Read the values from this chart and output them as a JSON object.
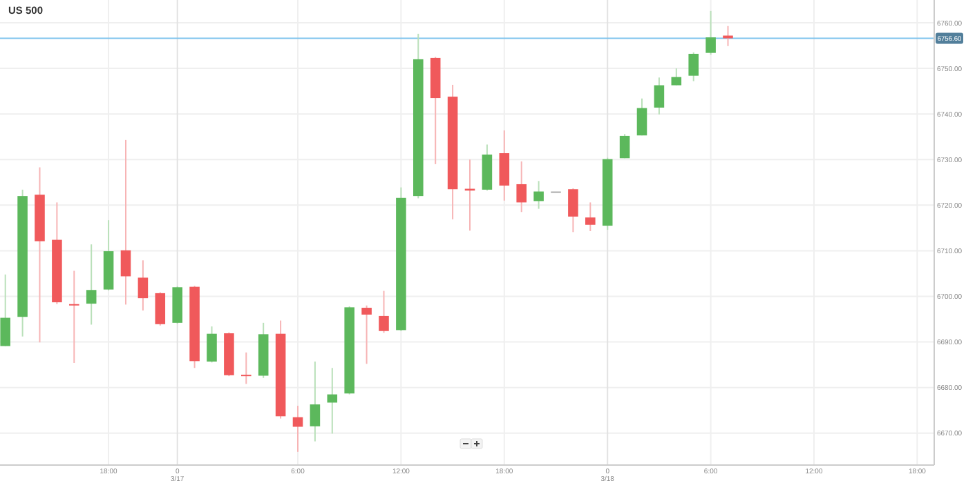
{
  "chart_data": {
    "type": "candlestick",
    "title": "US 500",
    "categories": [
      null,
      null,
      null,
      null,
      null,
      null,
      "18:00",
      null,
      null,
      null,
      "0\n3/17",
      null,
      null,
      null,
      null,
      null,
      null,
      "6:00",
      null,
      null,
      null,
      null,
      null,
      "12:00",
      null,
      null,
      null,
      null,
      null,
      "18:00",
      null,
      null,
      null,
      null,
      null,
      "0\n3/18",
      null,
      null,
      null,
      null,
      null,
      "6:00",
      null,
      null,
      null,
      null,
      null,
      "12:00",
      null,
      null,
      null,
      null,
      null,
      "18:00",
      null
    ],
    "ohlc": [
      [
        6689.1,
        6704.8,
        6689.1,
        6695.3
      ],
      [
        6695.5,
        6723.4,
        6691.2,
        6722.0
      ],
      [
        6722.3,
        6728.3,
        6689.9,
        6712.1
      ],
      [
        6712.4,
        6720.6,
        6698.3,
        6698.7
      ],
      [
        6698.3,
        6705.6,
        6685.4,
        6698.1
      ],
      [
        6698.4,
        6711.4,
        6693.8,
        6701.4
      ],
      [
        6701.5,
        6716.7,
        6701.3,
        6709.9
      ],
      [
        6710.1,
        6734.3,
        6698.2,
        6704.4
      ],
      [
        6704.1,
        6707.9,
        6696.9,
        6699.6
      ],
      [
        6700.7,
        6700.9,
        6693.6,
        6693.9
      ],
      [
        6694.2,
        6702.2,
        6694.0,
        6702.0
      ],
      [
        6702.1,
        6702.3,
        6684.3,
        6685.8
      ],
      [
        6685.7,
        6693.4,
        6685.5,
        6691.8
      ],
      [
        6691.9,
        6692.1,
        6682.5,
        6682.7
      ],
      [
        6682.8,
        6687.7,
        6680.8,
        6682.7
      ],
      [
        6682.6,
        6694.2,
        6682.1,
        6691.7
      ],
      [
        6691.8,
        6694.7,
        6673.2,
        6673.7
      ],
      [
        6673.5,
        6676.0,
        6665.9,
        6671.4
      ],
      [
        6671.5,
        6685.7,
        6668.2,
        6676.3
      ],
      [
        6676.7,
        6684.3,
        6669.9,
        6678.5
      ],
      [
        6678.7,
        6697.8,
        6678.5,
        6697.6
      ],
      [
        6697.5,
        6698.0,
        6685.2,
        6696.0
      ],
      [
        6695.7,
        6701.2,
        6692.0,
        6692.4
      ],
      [
        6692.6,
        6723.9,
        6692.4,
        6721.6
      ],
      [
        6722.0,
        6757.6,
        6721.5,
        6752.0
      ],
      [
        6752.3,
        6752.5,
        6729.0,
        6743.5
      ],
      [
        6743.8,
        6746.4,
        6716.9,
        6723.5
      ],
      [
        6723.6,
        6730.0,
        6714.4,
        6723.2
      ],
      [
        6723.4,
        6733.3,
        6723.2,
        6731.1
      ],
      [
        6731.4,
        6736.4,
        6721.0,
        6724.3
      ],
      [
        6724.6,
        6729.6,
        6718.5,
        6720.6
      ],
      [
        6720.9,
        6725.3,
        6719.2,
        6723.0
      ],
      [
        6723.0,
        6723.0,
        6723.0,
        6723.0
      ],
      [
        6723.5,
        6723.7,
        6714.1,
        6717.5
      ],
      [
        6717.3,
        6720.6,
        6714.3,
        6715.7
      ],
      [
        6715.5,
        6730.4,
        6714.6,
        6730.1
      ],
      [
        6730.3,
        6735.6,
        6730.3,
        6735.2
      ],
      [
        6735.3,
        6743.4,
        6735.3,
        6741.3
      ],
      [
        6741.4,
        6748.0,
        6739.9,
        6746.3
      ],
      [
        6746.3,
        6750.0,
        6746.3,
        6748.1
      ],
      [
        6748.4,
        6753.5,
        6747.2,
        6753.2
      ],
      [
        6753.4,
        6762.6,
        6753.0,
        6756.8
      ],
      [
        6757.2,
        6759.3,
        6754.9,
        6756.6
      ],
      null,
      null,
      null,
      null,
      null,
      null,
      null,
      null,
      null,
      null,
      null,
      null
    ],
    "ylim": [
      6663,
      6765
    ],
    "yticks": [
      {
        "value": 6670,
        "label": "6670.00"
      },
      {
        "value": 6680,
        "label": "6680.00"
      },
      {
        "value": 6690,
        "label": "6690.00"
      },
      {
        "value": 6700,
        "label": "6700.00"
      },
      {
        "value": 6710,
        "label": "6710.00"
      },
      {
        "value": 6720,
        "label": "6720.00"
      },
      {
        "value": 6730,
        "label": "6730.00"
      },
      {
        "value": 6740,
        "label": "6740.00"
      },
      {
        "value": 6750,
        "label": "6750.00"
      },
      {
        "value": 6760,
        "label": "6760.00"
      }
    ],
    "ref_lines": [
      {
        "axis": "y",
        "value": 6756.6,
        "label": "6756.60",
        "color": "#7ec3ee"
      }
    ],
    "grid": true
  }
}
